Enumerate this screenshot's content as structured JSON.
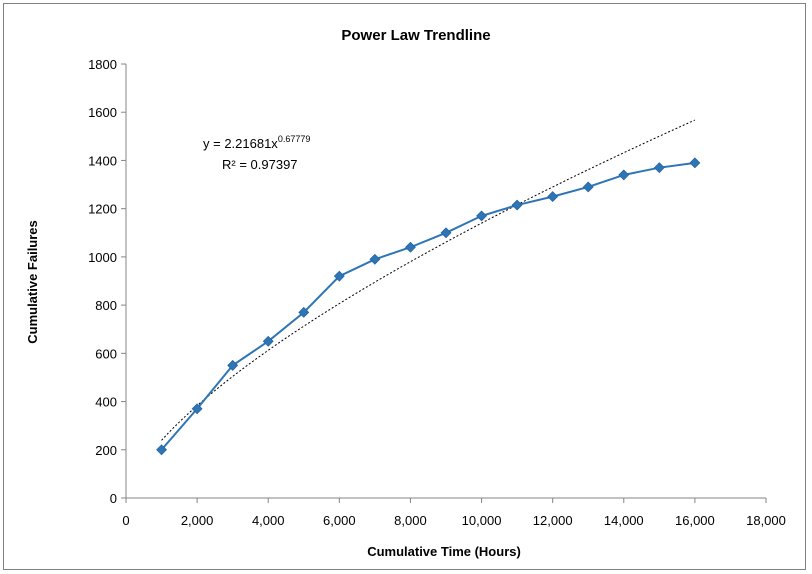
{
  "chart_data": {
    "type": "scatter",
    "title": "Power Law Trendline",
    "xlabel": "Cumulative Time (Hours)",
    "ylabel": "Cumulative Failures",
    "xlim": [
      0,
      18000
    ],
    "ylim": [
      0,
      1800
    ],
    "x_ticks": [
      0,
      2000,
      4000,
      6000,
      8000,
      10000,
      12000,
      14000,
      16000,
      18000
    ],
    "x_tick_labels": [
      "0",
      "2,000",
      "4,000",
      "6,000",
      "8,000",
      "10,000",
      "12,000",
      "14,000",
      "16,000",
      "18,000"
    ],
    "y_ticks": [
      0,
      200,
      400,
      600,
      800,
      1000,
      1200,
      1400,
      1600,
      1800
    ],
    "y_tick_labels": [
      "0",
      "200",
      "400",
      "600",
      "800",
      "1000",
      "1200",
      "1400",
      "1600",
      "1800"
    ],
    "grid": false,
    "legend": "none",
    "series": [
      {
        "x": [
          1000,
          2000,
          3000,
          4000,
          5000,
          6000,
          7000,
          8000,
          9000,
          10000,
          11000,
          12000,
          13000,
          14000,
          15000,
          16000
        ],
        "values": [
          200,
          370,
          550,
          650,
          770,
          920,
          990,
          1040,
          1100,
          1170,
          1215,
          1250,
          1290,
          1340,
          1370,
          1390
        ],
        "color": "#2E75B6",
        "marker": "diamond"
      }
    ],
    "trendline": {
      "type": "power",
      "coefficient": 2.21681,
      "exponent": 0.67779,
      "x_range": [
        1000,
        16000
      ],
      "color": "#000000",
      "style": "dotted"
    },
    "annotations": {
      "equation_prefix": "y = 2.21681x",
      "equation_exponent": "0.67779",
      "r_squared": "R² = 0.97397"
    }
  }
}
